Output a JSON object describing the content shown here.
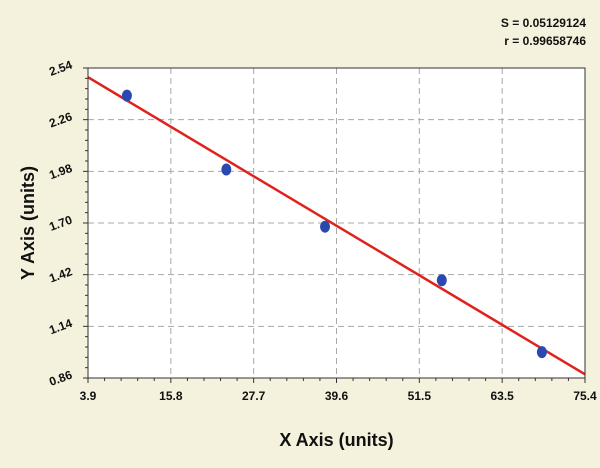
{
  "stats": {
    "s_text": "S = 0.05129124",
    "r_text": "r = 0.99658746"
  },
  "colors": {
    "background": "#f4f1dc",
    "plot_area": "#ffffff",
    "grid": "#a8a8a8",
    "fit_line": "#e0211c",
    "points": "#2b48b0"
  },
  "chart_data": {
    "type": "scatter",
    "title": "",
    "xlabel": "X Axis (units)",
    "ylabel": "Y Axis (units)",
    "xlim": [
      3.9,
      75.4
    ],
    "ylim": [
      0.86,
      2.54
    ],
    "x_ticks": [
      "3.9",
      "15.8",
      "27.7",
      "39.6",
      "51.5",
      "63.5",
      "75.4"
    ],
    "y_ticks": [
      "0.86",
      "1.14",
      "1.42",
      "1.70",
      "1.98",
      "2.26",
      "2.54"
    ],
    "grid": true,
    "series": [
      {
        "points": [
          {
            "x": 9.5,
            "y": 2.39
          },
          {
            "x": 23.8,
            "y": 1.99
          },
          {
            "x": 38.0,
            "y": 1.68
          },
          {
            "x": 54.8,
            "y": 1.39
          },
          {
            "x": 69.2,
            "y": 1.0
          }
        ]
      }
    ],
    "fit_line": {
      "x": [
        3.9,
        75.4
      ],
      "y": [
        2.49,
        0.88
      ]
    }
  }
}
